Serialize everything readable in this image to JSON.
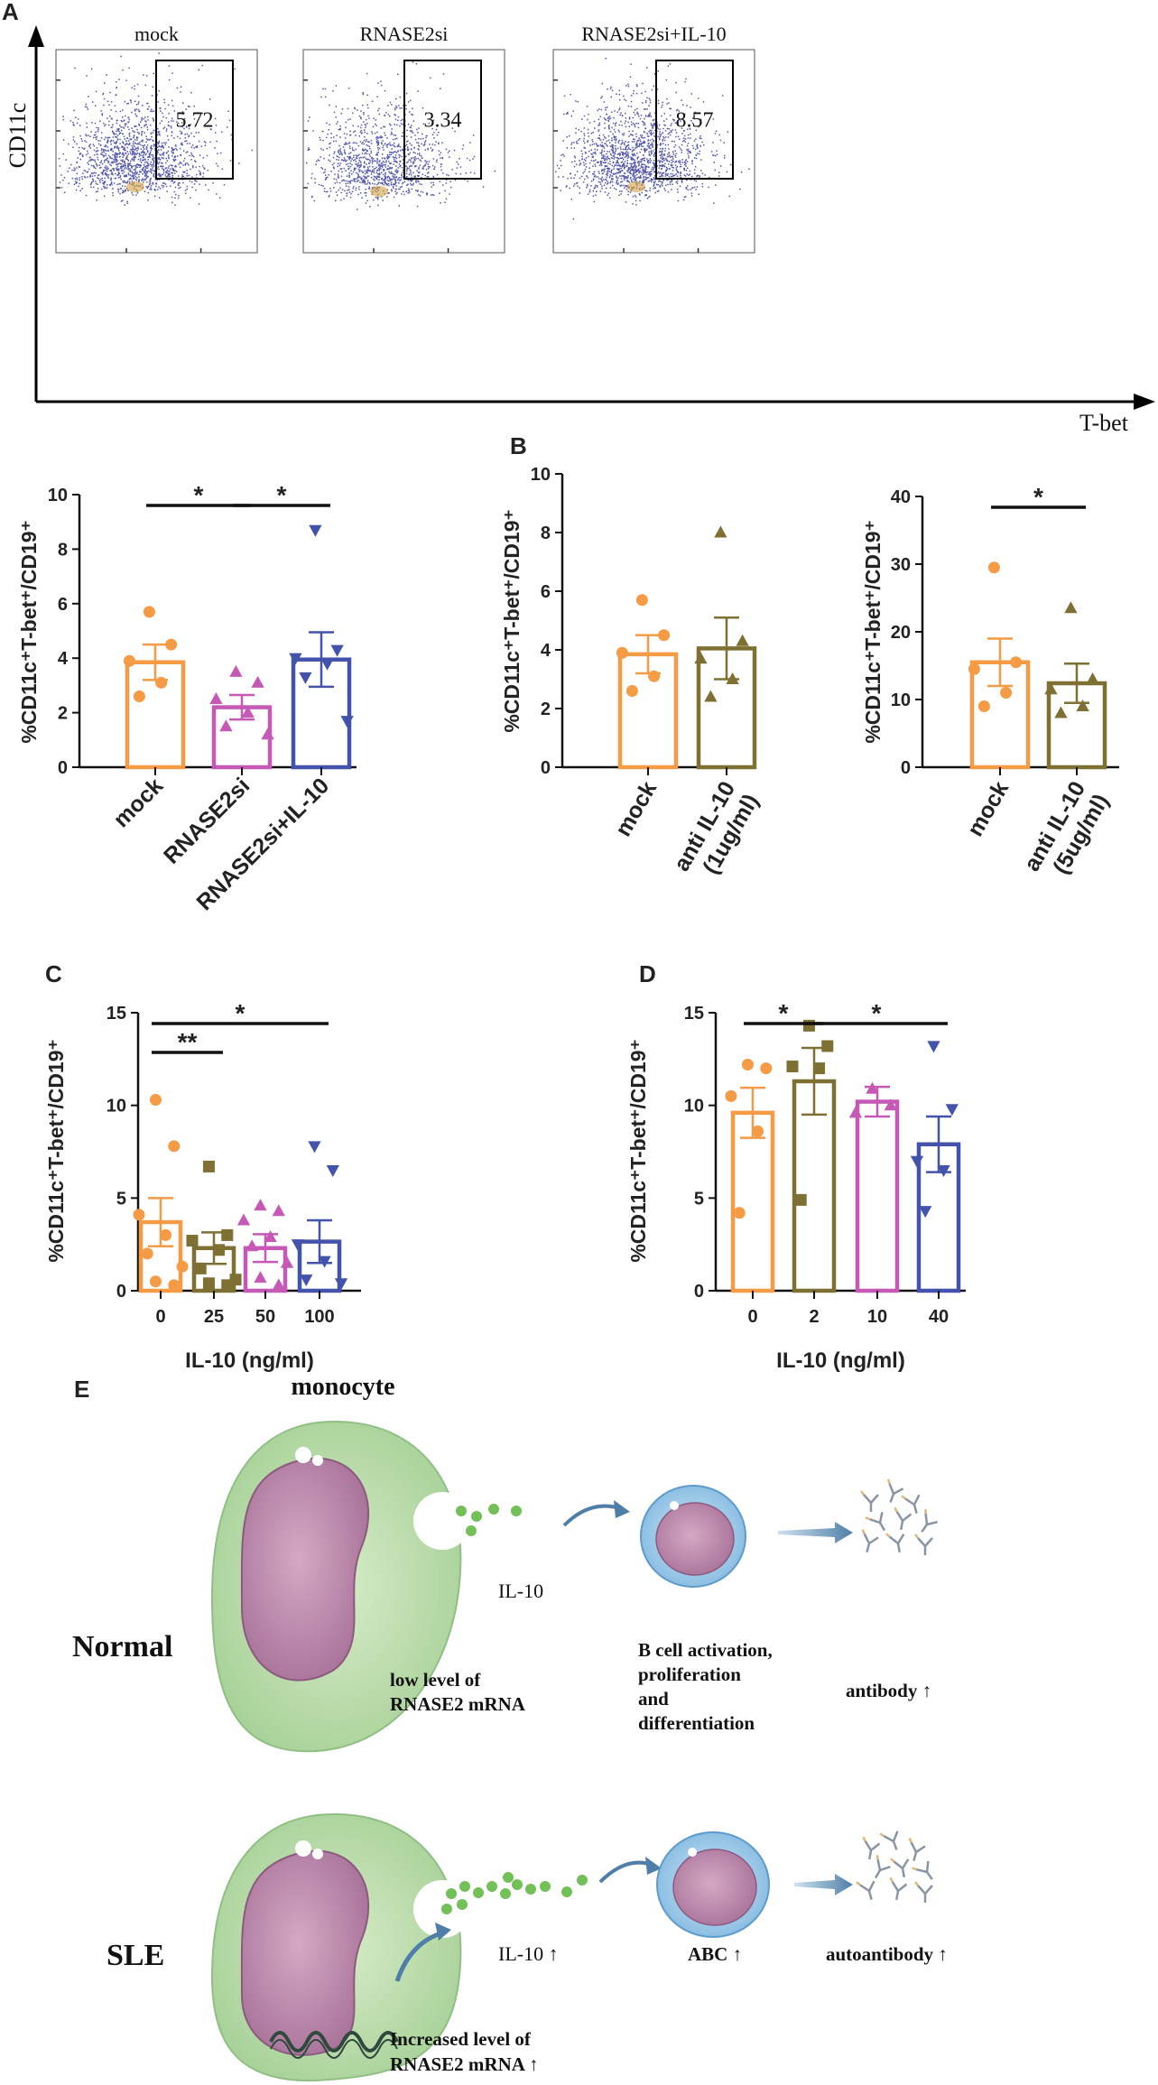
{
  "panel_letters": {
    "a": "A",
    "b": "B",
    "c": "C",
    "d": "D",
    "e": "E"
  },
  "colors": {
    "orange": "#f59a45",
    "olive": "#7e7033",
    "magenta": "#c559b5",
    "blue": "#4353ab",
    "dot": "#343a9c"
  },
  "panel_a": {
    "y_axis_label": "CD11c",
    "x_axis_label": "T-bet",
    "plots": [
      {
        "title": "mock",
        "gate_value": "5.72"
      },
      {
        "title": "RNASE2si",
        "gate_value": "3.34"
      },
      {
        "title": "RNASE2si+IL-10",
        "gate_value": "8.57"
      }
    ]
  },
  "y_label_pct": "%CD11c⁺T-bet⁺/CD19⁺",
  "chart_data": [
    {
      "id": "a_bar",
      "type": "bar",
      "categories": [
        "mock",
        "RNASE2si",
        "RNASE2si+IL-10"
      ],
      "values": [
        3.85,
        2.2,
        3.95
      ],
      "errors": [
        0.65,
        0.45,
        1.0
      ],
      "points": [
        [
          5.7,
          4.5,
          3.9,
          3.1,
          2.6
        ],
        [
          3.5,
          3.1,
          2.5,
          2.0,
          1.5,
          1.2
        ],
        [
          8.7,
          4.3,
          4.0,
          3.8,
          3.3,
          1.7
        ]
      ],
      "markers": [
        "circle",
        "triangle-up",
        "triangle-down"
      ],
      "colors": [
        "#f59a45",
        "#c559b5",
        "#4353ab"
      ],
      "ylabel": "%CD11c⁺T-bet⁺/CD19⁺",
      "ylim": [
        0,
        10
      ],
      "yticks": [
        0,
        2,
        4,
        6,
        8,
        10
      ],
      "significance": [
        {
          "from": 0,
          "to": 1,
          "label": "*"
        },
        {
          "from": 1,
          "to": 2,
          "label": "*"
        }
      ]
    },
    {
      "id": "b_left",
      "type": "bar",
      "categories": [
        "mock",
        "anti IL-10\n(1ug/ml)"
      ],
      "values": [
        3.85,
        4.05
      ],
      "errors": [
        0.65,
        1.05
      ],
      "points": [
        [
          5.7,
          4.5,
          3.9,
          3.1,
          2.6
        ],
        [
          8.0,
          4.3,
          3.7,
          3.0,
          2.4
        ]
      ],
      "markers": [
        "circle",
        "triangle-up"
      ],
      "colors": [
        "#f59a45",
        "#7e7033"
      ],
      "ylabel": "%CD11c⁺T-bet⁺/CD19⁺",
      "ylim": [
        0,
        10
      ],
      "yticks": [
        0,
        2,
        4,
        6,
        8,
        10
      ],
      "significance": []
    },
    {
      "id": "b_right",
      "type": "bar",
      "categories": [
        "mock",
        "anti IL-10\n(5ug/ml)"
      ],
      "values": [
        15.5,
        12.4
      ],
      "errors": [
        3.5,
        2.9
      ],
      "points": [
        [
          29.5,
          15.5,
          14.5,
          11.0,
          9.0
        ],
        [
          23.5,
          13.0,
          11.5,
          9.0,
          8.0
        ]
      ],
      "markers": [
        "circle",
        "triangle-up"
      ],
      "colors": [
        "#f59a45",
        "#7e7033"
      ],
      "ylabel": "%CD11c⁺T-bet⁺/CD19⁺",
      "ylim": [
        0,
        40
      ],
      "yticks": [
        0,
        10,
        20,
        30,
        40
      ],
      "significance": [
        {
          "from": 0,
          "to": 1,
          "label": "*"
        }
      ]
    },
    {
      "id": "c",
      "type": "bar",
      "categories": [
        "0",
        "25",
        "50",
        "100"
      ],
      "values": [
        3.7,
        2.3,
        2.3,
        2.65
      ],
      "errors": [
        1.3,
        0.85,
        0.75,
        1.15
      ],
      "points": [
        [
          10.3,
          7.8,
          4.1,
          3.0,
          2.0,
          1.3,
          0.5,
          0.3
        ],
        [
          6.7,
          3.0,
          2.7,
          2.2,
          1.2,
          0.6,
          0.4,
          0.3
        ],
        [
          4.6,
          4.3,
          3.8,
          2.9,
          2.4,
          1.5,
          0.7,
          0.3
        ],
        [
          7.8,
          6.5,
          2.5,
          1.6,
          0.6,
          0.4
        ]
      ],
      "markers": [
        "circle",
        "square",
        "triangle-up",
        "triangle-down"
      ],
      "colors": [
        "#f59a45",
        "#7e7033",
        "#c559b5",
        "#4353ab"
      ],
      "xlabel": "IL-10 (ng/ml)",
      "ylabel": "%CD11c⁺T-bet⁺/CD19⁺",
      "ylim": [
        0,
        15
      ],
      "yticks": [
        0,
        5,
        10,
        15
      ],
      "significance": [
        {
          "from": 0,
          "to": 1,
          "label": "**"
        },
        {
          "from": 0,
          "to": 3,
          "label": "*"
        }
      ]
    },
    {
      "id": "d",
      "type": "bar",
      "categories": [
        "0",
        "2",
        "10",
        "40"
      ],
      "values": [
        9.6,
        11.3,
        10.2,
        7.9
      ],
      "errors": [
        1.35,
        1.8,
        0.8,
        1.5
      ],
      "points": [
        [
          12.2,
          12.0,
          10.5,
          8.6,
          4.2
        ],
        [
          14.3,
          13.2,
          12.1,
          12.0,
          4.9
        ],
        [
          10.9,
          10.0,
          9.6
        ],
        [
          13.2,
          9.8,
          7.0,
          6.5,
          4.3
        ]
      ],
      "markers": [
        "circle",
        "square",
        "triangle-up",
        "triangle-down"
      ],
      "colors": [
        "#f59a45",
        "#7e7033",
        "#c559b5",
        "#4353ab"
      ],
      "xlabel": "IL-10 (ng/ml)",
      "ylabel": "%CD11c⁺T-bet⁺/CD19⁺",
      "ylim": [
        0,
        15
      ],
      "yticks": [
        0,
        5,
        10,
        15
      ],
      "significance": [
        {
          "from": 0,
          "to": 1,
          "label": "*"
        },
        {
          "from": 1,
          "to": 3,
          "label": "*"
        }
      ]
    }
  ],
  "panel_e": {
    "monocyte_label": "monocyte",
    "normal": {
      "row_label": "Normal",
      "il10": "IL-10",
      "rnase": [
        "low level of",
        "RNASE2 mRNA"
      ],
      "bcell": [
        "B cell activation,",
        "proliferation",
        "and",
        "differentiation"
      ],
      "product": "antibody ↑"
    },
    "sle": {
      "row_label": "SLE",
      "il10": "IL-10 ↑",
      "rnase": [
        "Increased level of",
        "RNASE2 mRNA ↑"
      ],
      "bcell": "ABC ↑",
      "product": "autoantibody ↑"
    }
  }
}
